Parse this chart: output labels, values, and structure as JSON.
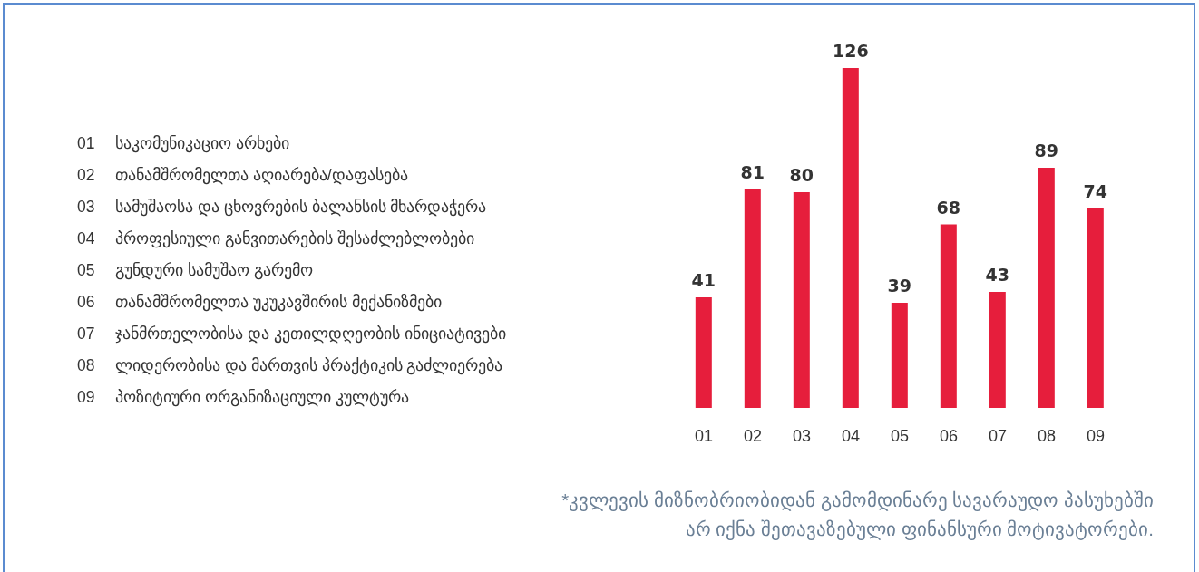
{
  "chart_data": {
    "type": "bar",
    "categories": [
      "01",
      "02",
      "03",
      "04",
      "05",
      "06",
      "07",
      "08",
      "09"
    ],
    "values": [
      41,
      81,
      80,
      126,
      39,
      68,
      43,
      89,
      74
    ],
    "color": "#e61e3c",
    "data_labels": true,
    "annotations": [
      "01 საკომუნიკაციო არხები",
      "02 თანამშრომელთა აღიარება/დაფასება",
      "03 სამუშაოსა და ცხოვრების ბალანსის მხარდაჭერა",
      "04 პროფესიული განვითარების შესაძლებლობები",
      "05 გუნდური სამუშაო გარემო",
      "06 თანამშრომელთა უკუკავშირის მექანიზმები",
      "07 ჯანმრთელობისა და კეთილდღეობის ინიციატივები",
      "08 ლიდერობისა და მართვის პრაქტიკის გაძლიერება",
      "09 პოზიტიური ორგანიზაციული კულტურა",
      "*კვლევის მიზნობრიობიდან გამომდინარე სავარაუდო პასუხებში\nარ იქნა შეთავაზებული ფინანსური მოტივატორები."
    ]
  }
}
